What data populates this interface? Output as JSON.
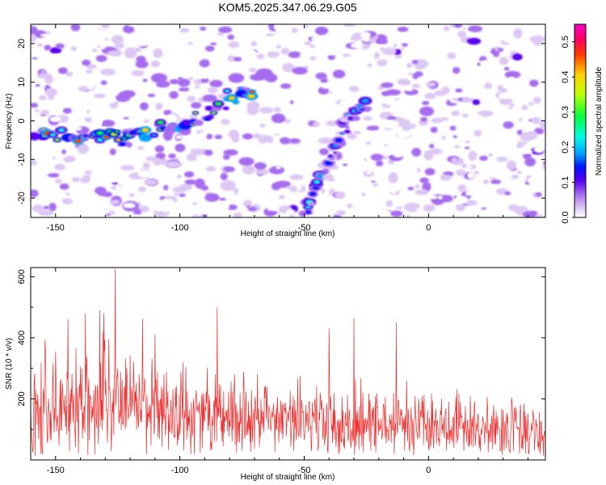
{
  "title": "KOM5.2025.347.06.29.G05",
  "chart_data": [
    {
      "type": "heatmap",
      "title": "KOM5.2025.347.06.29.G05",
      "xlabel": "Height of straight line (km)",
      "ylabel": "Frequency (Hz)",
      "xlim": [
        -160,
        47
      ],
      "ylim": [
        -25,
        25
      ],
      "x_ticks": [
        -150,
        -100,
        -50,
        0
      ],
      "y_ticks": [
        -20,
        -10,
        0,
        10,
        20
      ],
      "colorbar": {
        "label": "Normalized spectral amplitude",
        "range": [
          0.0,
          0.55
        ],
        "ticks": [
          0.0,
          0.1,
          0.2,
          0.3,
          0.4,
          0.5
        ],
        "tick_labels": [
          "0.0",
          "0.1",
          "0.2",
          "0.3",
          "0.4",
          "0.5"
        ]
      },
      "features": [
        {
          "name": "",
          "points": [
            [
              -158,
              -4
            ],
            [
              -140,
              -4
            ],
            [
              -120,
              -3.5
            ],
            [
              -110,
              -3
            ],
            [
              -100,
              -2
            ],
            [
              -92,
              1
            ],
            [
              -85,
              3.5
            ],
            [
              -78,
              6
            ],
            [
              -70,
              8
            ]
          ],
          "peak_amplitude": 0.5
        },
        {
          "name": "",
          "points": [
            [
              -49,
              -22
            ],
            [
              -45,
              -17
            ],
            [
              -41,
              -11
            ],
            [
              -37,
              -6
            ],
            [
              -33,
              -1
            ],
            [
              -29,
              3
            ],
            [
              -25,
              6
            ]
          ],
          "peak_amplitude": 0.3
        }
      ],
      "grid": false
    },
    {
      "type": "line",
      "xlabel": "Height of straight line (km)",
      "ylabel": "SNR (10 * v/v)",
      "xlim": [
        -160,
        47
      ],
      "ylim": [
        0,
        630
      ],
      "x_ticks": [
        -150,
        -100,
        -50,
        0
      ],
      "y_ticks": [
        200,
        400,
        600
      ],
      "color": "#ee2e2e",
      "peaks": [
        [
          -126,
          625
        ],
        [
          -85,
          500
        ],
        [
          -138,
          480
        ],
        [
          -145,
          460
        ],
        [
          -30,
          465
        ],
        [
          -13,
          450
        ],
        [
          -40,
          430
        ],
        [
          -110,
          410
        ]
      ],
      "baseline": 150,
      "x_step": 0.2,
      "grid": false
    }
  ],
  "colors": {
    "snr_line": "#ee2e2e",
    "colormap": [
      "#ffffff",
      "#ddc8f4",
      "#a66cf0",
      "#5a00f0",
      "#0010ff",
      "#00a0ff",
      "#00ffe0",
      "#00ff40",
      "#c0ff00",
      "#ffd000",
      "#ff4000",
      "#ff0060",
      "#ff00c8"
    ]
  }
}
